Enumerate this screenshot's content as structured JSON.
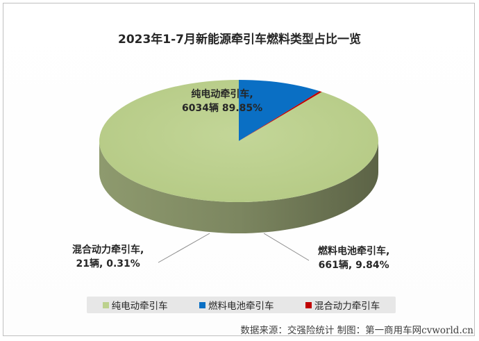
{
  "chart_data": {
    "type": "pie",
    "title": "2023年1-7月新能源牵引车燃料类型占比一览",
    "slices": [
      {
        "name": "纯电动牵引车",
        "count_label": "6034辆",
        "percent_label": "89.85%",
        "value": 89.85,
        "color": "#bcd18e"
      },
      {
        "name": "燃料电池牵引车",
        "count_label": "661辆",
        "percent_label": "9.84%",
        "value": 9.84,
        "color": "#0a6fc4"
      },
      {
        "name": "混合动力牵引车",
        "count_label": "21辆",
        "percent_label": "0.31%",
        "value": 0.31,
        "color": "#c00000"
      }
    ],
    "legend": [
      "纯电动牵引车",
      "燃料电池牵引车",
      "混合动力牵引车"
    ],
    "legend_position": "bottom",
    "style": "3d-tilted-pie"
  },
  "labels": {
    "ev": {
      "name": "纯电动牵引车,",
      "value": "6034辆 89.85%"
    },
    "fc": {
      "name": "燃料电池牵引车,",
      "value": "661辆, 9.84%"
    },
    "hy": {
      "name": "混合动力牵引车,",
      "value": "21辆, 0.31%"
    }
  },
  "source": "数据来源：交强险统计  制图：第一商用车网cvworld.cn"
}
